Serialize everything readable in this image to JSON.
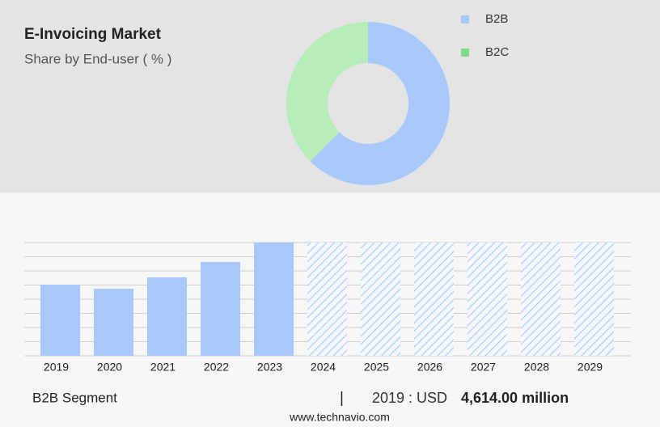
{
  "chart_data": [
    {
      "type": "donut",
      "title": "E-Invoicing Market",
      "subtitle": "Share by End-user ( % )",
      "categories": [
        "B2B",
        "B2C"
      ],
      "values": [
        62.5,
        37.5
      ],
      "colors": [
        "#a8c8fb",
        "#b6edb9"
      ],
      "legend_colors": [
        "#a8c8fb",
        "#7ddc8a"
      ]
    },
    {
      "type": "bar",
      "categories": [
        "2019",
        "2020",
        "2021",
        "2022",
        "2023",
        "2024",
        "2025",
        "2026",
        "2027",
        "2028",
        "2029"
      ],
      "values": [
        4614,
        4350,
        5090,
        6080,
        7340,
        null,
        null,
        null,
        null,
        null,
        null
      ],
      "color": "#a8c8fb",
      "ylim": [
        0,
        7340
      ],
      "grid": true
    }
  ],
  "footer": {
    "segment": "B2B Segment",
    "year_label": "2019 : USD",
    "value_label": "4,614.00 million"
  },
  "source": "www.technavio.com"
}
